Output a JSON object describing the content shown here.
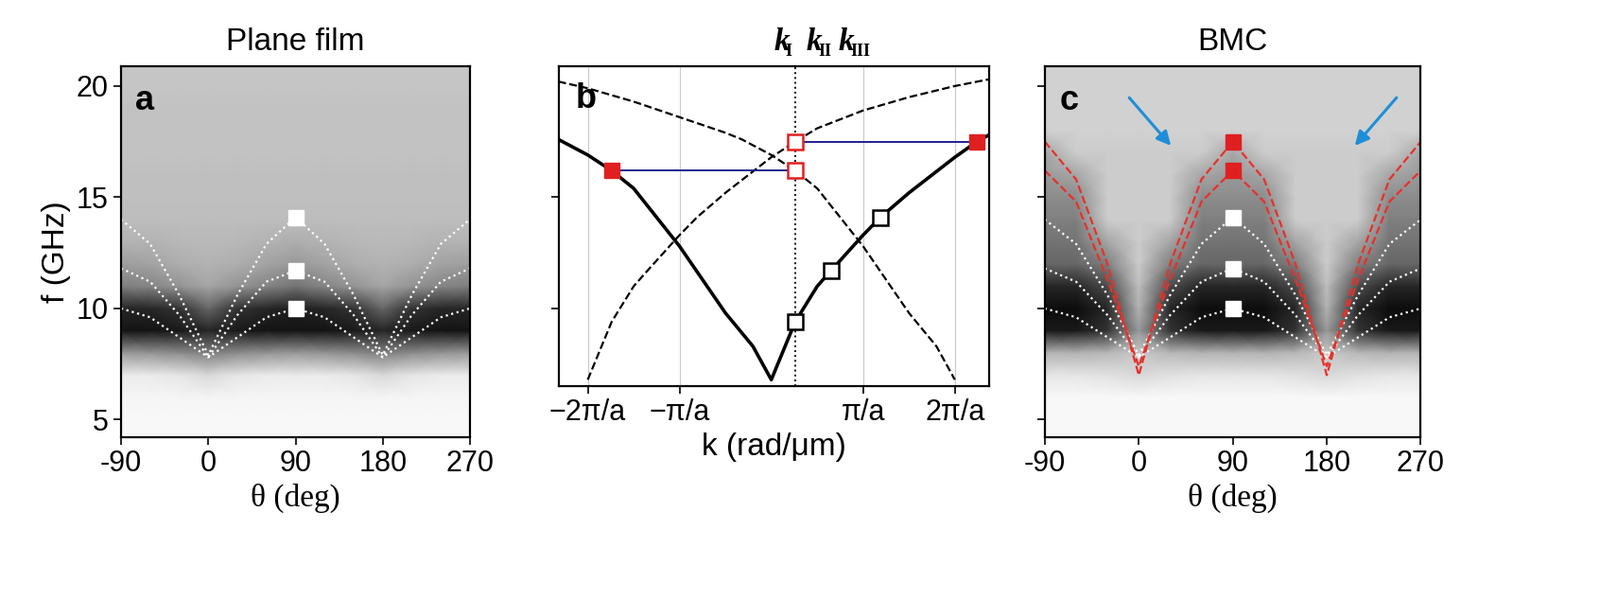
{
  "chart_data": [
    {
      "type": "heatmap",
      "panel": "a",
      "title": "Plane film",
      "xlabel": "θ (deg)",
      "ylabel": "f (GHz)",
      "xlim": [
        -90,
        270
      ],
      "ylim": [
        4.2,
        20.9
      ],
      "xticks": [
        -90,
        0,
        90,
        180,
        270
      ],
      "yticks": [
        5,
        10,
        15,
        20
      ],
      "clim": [
        0,
        1
      ],
      "cells_x": [
        -90,
        -60,
        -30,
        0,
        30,
        60,
        90,
        120,
        150,
        180,
        210,
        240,
        270
      ],
      "cells_y": [
        4,
        5,
        6,
        7,
        8,
        9,
        10,
        11,
        12,
        13,
        14,
        15,
        16,
        17,
        18,
        19,
        20,
        21
      ],
      "cells": [
        [
          0.03,
          0.03,
          0.03,
          0.03,
          0.03,
          0.03,
          0.03,
          0.03,
          0.03,
          0.03,
          0.03,
          0.03,
          0.03
        ],
        [
          0.03,
          0.03,
          0.03,
          0.03,
          0.03,
          0.03,
          0.03,
          0.03,
          0.03,
          0.03,
          0.03,
          0.03,
          0.03
        ],
        [
          0.04,
          0.04,
          0.04,
          0.04,
          0.04,
          0.04,
          0.04,
          0.04,
          0.04,
          0.04,
          0.04,
          0.04,
          0.04
        ],
        [
          0.08,
          0.08,
          0.1,
          0.15,
          0.1,
          0.08,
          0.08,
          0.08,
          0.1,
          0.15,
          0.1,
          0.08,
          0.08
        ],
        [
          0.4,
          0.42,
          0.45,
          0.5,
          0.45,
          0.42,
          0.4,
          0.42,
          0.45,
          0.5,
          0.45,
          0.42,
          0.4
        ],
        [
          0.92,
          0.92,
          0.9,
          0.85,
          0.9,
          0.92,
          0.92,
          0.92,
          0.9,
          0.85,
          0.9,
          0.92,
          0.92
        ],
        [
          0.85,
          0.85,
          0.8,
          0.6,
          0.8,
          0.85,
          0.88,
          0.85,
          0.8,
          0.6,
          0.8,
          0.85,
          0.85
        ],
        [
          0.5,
          0.48,
          0.42,
          0.35,
          0.42,
          0.48,
          0.55,
          0.48,
          0.42,
          0.35,
          0.42,
          0.48,
          0.5
        ],
        [
          0.38,
          0.36,
          0.32,
          0.3,
          0.32,
          0.36,
          0.4,
          0.36,
          0.32,
          0.3,
          0.32,
          0.36,
          0.38
        ],
        [
          0.3,
          0.3,
          0.28,
          0.27,
          0.28,
          0.3,
          0.32,
          0.3,
          0.28,
          0.27,
          0.28,
          0.3,
          0.3
        ],
        [
          0.26,
          0.26,
          0.26,
          0.26,
          0.26,
          0.26,
          0.26,
          0.26,
          0.26,
          0.26,
          0.26,
          0.26,
          0.26
        ],
        [
          0.25,
          0.25,
          0.25,
          0.25,
          0.25,
          0.25,
          0.25,
          0.25,
          0.25,
          0.25,
          0.25,
          0.25,
          0.25
        ],
        [
          0.25,
          0.25,
          0.25,
          0.25,
          0.25,
          0.25,
          0.25,
          0.25,
          0.25,
          0.25,
          0.25,
          0.25,
          0.25
        ],
        [
          0.24,
          0.24,
          0.24,
          0.24,
          0.24,
          0.24,
          0.24,
          0.24,
          0.24,
          0.24,
          0.24,
          0.24,
          0.24
        ],
        [
          0.24,
          0.24,
          0.24,
          0.24,
          0.24,
          0.24,
          0.24,
          0.24,
          0.24,
          0.24,
          0.24,
          0.24,
          0.24
        ],
        [
          0.24,
          0.24,
          0.24,
          0.24,
          0.24,
          0.24,
          0.24,
          0.24,
          0.24,
          0.24,
          0.24,
          0.24,
          0.24
        ],
        [
          0.23,
          0.23,
          0.23,
          0.23,
          0.23,
          0.23,
          0.23,
          0.23,
          0.23,
          0.23,
          0.23,
          0.23,
          0.23
        ],
        [
          0.23,
          0.23,
          0.23,
          0.23,
          0.23,
          0.23,
          0.23,
          0.23,
          0.23,
          0.23,
          0.23,
          0.23,
          0.23
        ]
      ],
      "series": [
        {
          "x": [
            -90,
            -60,
            -30,
            0,
            30,
            60,
            90,
            120,
            150,
            180,
            210,
            240,
            270
          ],
          "color": "#ffffff",
          "line_style": "dotted",
          "values": [
            10.0,
            9.6,
            8.7,
            7.8,
            8.7,
            9.6,
            10.0,
            9.6,
            8.7,
            7.8,
            8.7,
            9.6,
            10.0
          ]
        },
        {
          "x": [
            -90,
            -60,
            -30,
            0,
            30,
            60,
            90,
            120,
            150,
            180,
            210,
            240,
            270
          ],
          "color": "#ffffff",
          "line_style": "dotted",
          "values": [
            11.8,
            11.2,
            9.7,
            7.8,
            9.7,
            11.2,
            11.7,
            11.2,
            9.7,
            7.8,
            9.7,
            11.2,
            11.8
          ]
        },
        {
          "x": [
            -90,
            -60,
            -30,
            0,
            30,
            60,
            90,
            120,
            150,
            180,
            210,
            240,
            270
          ],
          "color": "#ffffff",
          "line_style": "dotted",
          "values": [
            14.0,
            12.9,
            10.6,
            7.9,
            10.6,
            12.9,
            14.1,
            12.9,
            10.6,
            7.9,
            10.6,
            12.9,
            14.0
          ]
        }
      ],
      "points": [
        {
          "x": [
            90,
            90,
            90
          ],
          "y": [
            10.0,
            11.7,
            14.1
          ],
          "color": "#ffffff",
          "marker": "square"
        }
      ]
    },
    {
      "type": "line",
      "panel": "b",
      "xlabel": "k (rad/μm)",
      "k_labels": [
        {
          "base": "k",
          "sub": "I"
        },
        {
          "base": "k",
          "sub": "II"
        },
        {
          "base": "k",
          "sub": "III"
        }
      ],
      "xlim": [
        -2.32,
        2.37
      ],
      "ylim": [
        6.5,
        20.9
      ],
      "xticks": [
        {
          "value": -2,
          "label": "−2π/a"
        },
        {
          "value": -1,
          "label": "−π/a"
        },
        {
          "value": 1,
          "label": "π/a"
        },
        {
          "value": 2,
          "label": "2π/a"
        }
      ],
      "yticks": [
        10,
        15
      ],
      "tick_labels": "x",
      "grid": true,
      "vline_x": 0.26,
      "series": [
        {
          "color": "#000000",
          "line_style": "solid",
          "x": [
            -2.32,
            -2.0,
            -1.74,
            -1.5,
            -1.0,
            -0.5,
            -0.2,
            0.0,
            0.26,
            0.5,
            0.65,
            1.0,
            1.19,
            1.5,
            2.0,
            2.24,
            2.37
          ],
          "values": [
            17.6,
            16.9,
            16.2,
            15.4,
            12.8,
            9.8,
            8.3,
            6.8,
            9.4,
            11.0,
            11.7,
            13.3,
            14.1,
            15.2,
            16.8,
            17.5,
            17.8
          ]
        },
        {
          "color": "#000000",
          "line_style": "dashed",
          "x": [
            -2.0,
            -1.74,
            -1.5,
            -1.35,
            -1.0,
            -0.81,
            -0.5,
            0.0,
            0.26,
            0.5,
            1.0,
            1.5,
            2.0,
            2.37
          ],
          "values": [
            6.8,
            9.4,
            11.0,
            11.7,
            13.3,
            14.1,
            15.2,
            16.8,
            17.5,
            18.1,
            18.9,
            19.5,
            20.0,
            20.3
          ]
        },
        {
          "color": "#000000",
          "line_style": "dashed",
          "x": [
            -2.32,
            -2.0,
            -1.5,
            -1.0,
            -0.5,
            -0.32,
            0.0,
            0.26,
            0.5,
            1.0,
            1.5,
            1.8,
            2.0
          ],
          "values": [
            20.2,
            19.9,
            19.3,
            18.6,
            17.9,
            17.6,
            16.9,
            16.2,
            15.4,
            12.8,
            9.8,
            8.3,
            6.8
          ]
        }
      ],
      "transfers": [
        {
          "x": [
            -1.74,
            0.26
          ],
          "y": [
            16.2,
            16.2
          ],
          "color": "#1f1f8f"
        },
        {
          "x": [
            2.24,
            0.26
          ],
          "y": [
            17.5,
            17.5
          ],
          "color": "#1f1f8f"
        }
      ],
      "points": [
        {
          "x": [
            0.26,
            0.65,
            1.19
          ],
          "y": [
            9.4,
            11.7,
            14.1
          ],
          "color": "#000000",
          "marker": "open square"
        },
        {
          "x": [
            -1.74,
            2.24
          ],
          "y": [
            16.2,
            17.5
          ],
          "color": "#e02020",
          "marker": "square"
        },
        {
          "x": [
            0.26,
            0.26
          ],
          "y": [
            16.2,
            17.5
          ],
          "color": "#e02020",
          "marker": "open square"
        }
      ]
    },
    {
      "type": "heatmap",
      "panel": "c",
      "title": "BMC",
      "xlabel": "θ (deg)",
      "xlim": [
        -90,
        270
      ],
      "ylim": [
        4.2,
        20.9
      ],
      "xticks": [
        -90,
        0,
        90,
        180,
        270
      ],
      "yticks": [
        5,
        10,
        15,
        20
      ],
      "tick_labels": "x",
      "clim": [
        0,
        1
      ],
      "cells_x": [
        -90,
        -60,
        -30,
        0,
        30,
        60,
        90,
        120,
        150,
        180,
        210,
        240,
        270
      ],
      "cells_y": [
        4,
        5,
        6,
        7,
        8,
        9,
        10,
        11,
        12,
        13,
        14,
        15,
        16,
        17,
        18,
        19,
        20,
        21
      ],
      "cells": [
        [
          0.03,
          0.03,
          0.03,
          0.03,
          0.03,
          0.03,
          0.03,
          0.03,
          0.03,
          0.03,
          0.03,
          0.03,
          0.03
        ],
        [
          0.03,
          0.03,
          0.03,
          0.03,
          0.03,
          0.03,
          0.03,
          0.03,
          0.03,
          0.03,
          0.03,
          0.03,
          0.03
        ],
        [
          0.03,
          0.03,
          0.03,
          0.03,
          0.03,
          0.03,
          0.03,
          0.03,
          0.03,
          0.03,
          0.03,
          0.03,
          0.03
        ],
        [
          0.1,
          0.1,
          0.12,
          0.15,
          0.12,
          0.1,
          0.1,
          0.1,
          0.12,
          0.15,
          0.12,
          0.1,
          0.1
        ],
        [
          0.3,
          0.3,
          0.28,
          0.22,
          0.28,
          0.3,
          0.3,
          0.3,
          0.28,
          0.22,
          0.28,
          0.3,
          0.3
        ],
        [
          0.9,
          0.9,
          0.8,
          0.4,
          0.8,
          0.9,
          0.9,
          0.9,
          0.8,
          0.4,
          0.8,
          0.9,
          0.9
        ],
        [
          0.95,
          0.95,
          0.85,
          0.3,
          0.85,
          0.95,
          0.95,
          0.95,
          0.85,
          0.3,
          0.85,
          0.95,
          0.95
        ],
        [
          0.85,
          0.85,
          0.7,
          0.25,
          0.7,
          0.85,
          0.85,
          0.85,
          0.7,
          0.25,
          0.7,
          0.85,
          0.85
        ],
        [
          0.6,
          0.6,
          0.5,
          0.2,
          0.5,
          0.6,
          0.6,
          0.6,
          0.5,
          0.2,
          0.5,
          0.6,
          0.6
        ],
        [
          0.55,
          0.55,
          0.35,
          0.2,
          0.35,
          0.55,
          0.55,
          0.55,
          0.35,
          0.2,
          0.35,
          0.55,
          0.55
        ],
        [
          0.5,
          0.5,
          0.2,
          0.2,
          0.2,
          0.5,
          0.5,
          0.5,
          0.2,
          0.2,
          0.2,
          0.5,
          0.5
        ],
        [
          0.45,
          0.45,
          0.2,
          0.2,
          0.2,
          0.45,
          0.45,
          0.45,
          0.2,
          0.2,
          0.2,
          0.45,
          0.45
        ],
        [
          0.4,
          0.35,
          0.2,
          0.2,
          0.2,
          0.35,
          0.4,
          0.35,
          0.2,
          0.2,
          0.2,
          0.35,
          0.4
        ],
        [
          0.35,
          0.2,
          0.2,
          0.2,
          0.2,
          0.2,
          0.35,
          0.2,
          0.2,
          0.2,
          0.2,
          0.2,
          0.35
        ],
        [
          0.18,
          0.18,
          0.18,
          0.18,
          0.18,
          0.18,
          0.18,
          0.18,
          0.18,
          0.18,
          0.18,
          0.18,
          0.18
        ],
        [
          0.18,
          0.18,
          0.18,
          0.18,
          0.18,
          0.18,
          0.18,
          0.18,
          0.18,
          0.18,
          0.18,
          0.18,
          0.18
        ],
        [
          0.18,
          0.18,
          0.18,
          0.18,
          0.18,
          0.18,
          0.18,
          0.18,
          0.18,
          0.18,
          0.18,
          0.18,
          0.18
        ],
        [
          0.18,
          0.18,
          0.18,
          0.18,
          0.18,
          0.18,
          0.18,
          0.18,
          0.18,
          0.18,
          0.18,
          0.18,
          0.18
        ]
      ],
      "series": [
        {
          "x": [
            -90,
            -60,
            -30,
            0,
            30,
            60,
            90,
            120,
            150,
            180,
            210,
            240,
            270
          ],
          "color": "#ffffff",
          "line_style": "dotted",
          "values": [
            10.0,
            9.6,
            8.7,
            7.8,
            8.7,
            9.6,
            10.0,
            9.6,
            8.7,
            7.8,
            8.7,
            9.6,
            10.0
          ]
        },
        {
          "x": [
            -90,
            -60,
            -30,
            0,
            30,
            60,
            90,
            120,
            150,
            180,
            210,
            240,
            270
          ],
          "color": "#ffffff",
          "line_style": "dotted",
          "values": [
            11.8,
            11.2,
            9.7,
            7.8,
            9.7,
            11.2,
            11.8,
            11.2,
            9.7,
            7.8,
            9.7,
            11.2,
            11.8
          ]
        },
        {
          "x": [
            -90,
            -60,
            -30,
            0,
            30,
            60,
            90,
            120,
            150,
            180,
            210,
            240,
            270
          ],
          "color": "#ffffff",
          "line_style": "dotted",
          "values": [
            14.0,
            12.9,
            10.6,
            7.9,
            10.6,
            12.9,
            14.1,
            12.9,
            10.6,
            7.9,
            10.6,
            12.9,
            14.0
          ]
        },
        {
          "x": [
            -90,
            -60,
            -30,
            0,
            30,
            60,
            90,
            120,
            150,
            180,
            210,
            240,
            270
          ],
          "color": "#e8302a",
          "line_style": "dashed",
          "values": [
            17.5,
            15.8,
            12.0,
            7.0,
            12.0,
            15.8,
            17.5,
            15.8,
            12.0,
            7.0,
            12.0,
            15.8,
            17.5
          ]
        },
        {
          "x": [
            -90,
            -60,
            -30,
            0,
            30,
            60,
            90,
            120,
            150,
            180,
            210,
            240,
            270
          ],
          "color": "#e8302a",
          "line_style": "dashed",
          "values": [
            16.2,
            14.8,
            11.3,
            7.4,
            11.3,
            14.8,
            16.2,
            14.8,
            11.3,
            7.4,
            11.3,
            14.8,
            16.2
          ]
        }
      ],
      "points": [
        {
          "x": [
            90,
            90,
            90
          ],
          "y": [
            10.0,
            11.8,
            14.1
          ],
          "color": "#ffffff",
          "marker": "square"
        },
        {
          "x": [
            90,
            90
          ],
          "y": [
            16.2,
            17.5
          ],
          "color": "#e02020",
          "marker": "square"
        }
      ]
    }
  ]
}
